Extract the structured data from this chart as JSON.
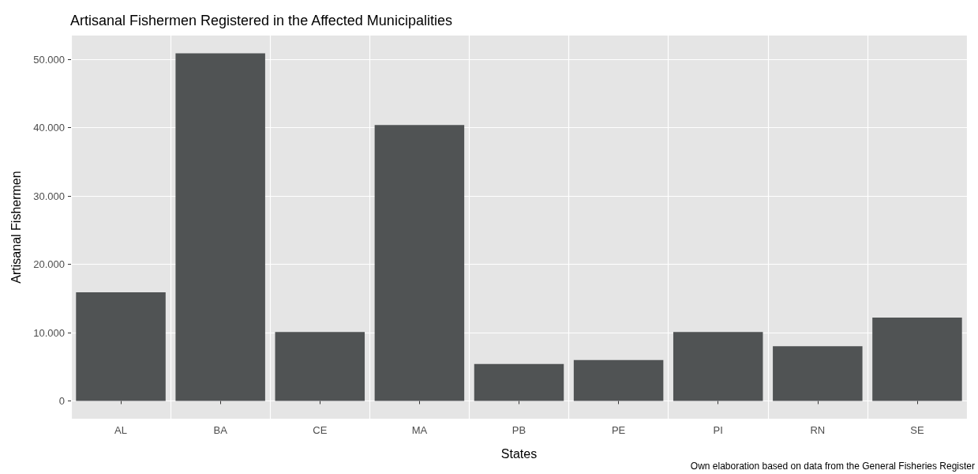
{
  "chart_data": {
    "type": "bar",
    "title": "Artisanal Fishermen Registered in the Affected Municipalities",
    "xlabel": "States",
    "ylabel": "Artisanal Fishermen",
    "categories": [
      "AL",
      "BA",
      "CE",
      "MA",
      "PB",
      "PE",
      "PI",
      "RN",
      "SE"
    ],
    "values": [
      15900,
      50900,
      10100,
      40400,
      5400,
      6000,
      10100,
      8000,
      12200
    ],
    "color": "#505354",
    "ylim": [
      -2600,
      53500
    ],
    "yticks": [
      {
        "value": 0,
        "label": "0"
      },
      {
        "value": 10000,
        "label": "10.000"
      },
      {
        "value": 20000,
        "label": "20.000"
      },
      {
        "value": 30000,
        "label": "30.000"
      },
      {
        "value": 40000,
        "label": "40.000"
      },
      {
        "value": 50000,
        "label": "50.000"
      }
    ],
    "grid": true,
    "annotations": [
      "Own elaboration based on data from the General Fisheries Register"
    ]
  }
}
